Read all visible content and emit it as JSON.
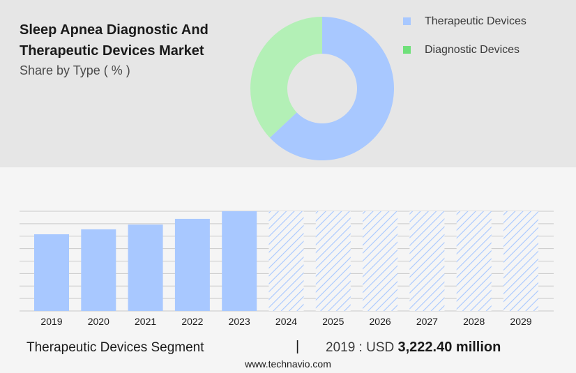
{
  "colors": {
    "therapeutic": "#a8c8ff",
    "diagnostic": "#b3f0b6",
    "legend_diagnostic": "#6fe07a",
    "hatch": "#a8c8ff"
  },
  "chart_data": [
    {
      "type": "pie",
      "title": "Sleep Apnea Diagnostic And Therapeutic Devices Market",
      "subtitle": "Share by Type ( % )",
      "legend": [
        "Therapeutic Devices",
        "Diagnostic Devices"
      ],
      "legend_placement": "top-right",
      "values": [
        63,
        37
      ],
      "donut": true
    },
    {
      "type": "bar",
      "categories": [
        "2019",
        "2020",
        "2021",
        "2022",
        "2023",
        "2024",
        "2025",
        "2026",
        "2027",
        "2028",
        "2029"
      ],
      "values": [
        3222.4,
        3430,
        3630,
        3870,
        4190,
        null,
        null,
        null,
        null,
        null,
        null
      ],
      "forecast_categories": [
        "2024",
        "2025",
        "2026",
        "2027",
        "2028",
        "2029"
      ],
      "ylim": [
        0,
        4190
      ],
      "grid": true
    }
  ],
  "footer": {
    "segment": "Therapeutic Devices Segment",
    "separator": "|",
    "year_label": "2019 : USD ",
    "value": "3,222.40 million",
    "site": "www.technavio.com"
  }
}
